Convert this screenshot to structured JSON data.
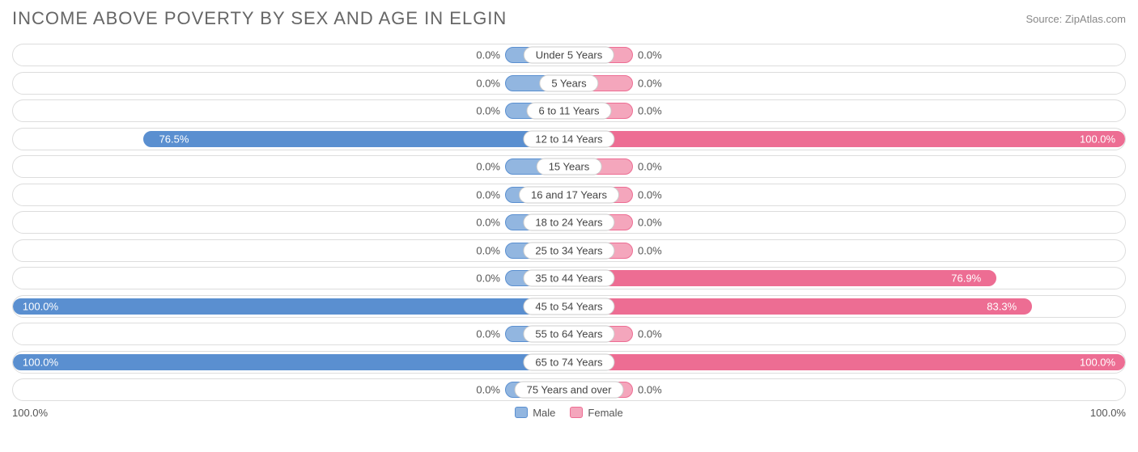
{
  "title": "INCOME ABOVE POVERTY BY SEX AND AGE IN ELGIN",
  "source": "Source: ZipAtlas.com",
  "axis": {
    "left_label": "100.0%",
    "right_label": "100.0%",
    "max": 100.0
  },
  "colors": {
    "male_fill": "#92b6e0",
    "male_border": "#5a8fd0",
    "male_solid": "#5a8fd0",
    "female_fill": "#f4a6bc",
    "female_border": "#ed6d93",
    "female_solid": "#ed6d93",
    "text_inside": "#ffffff",
    "text_outside": "#555555",
    "row_border": "#dddddd",
    "title_color": "#666666"
  },
  "min_bar_pct": 11.5,
  "legend": {
    "male": "Male",
    "female": "Female"
  },
  "rows": [
    {
      "age": "Under 5 Years",
      "male": 0.0,
      "female": 0.0
    },
    {
      "age": "5 Years",
      "male": 0.0,
      "female": 0.0
    },
    {
      "age": "6 to 11 Years",
      "male": 0.0,
      "female": 0.0
    },
    {
      "age": "12 to 14 Years",
      "male": 76.5,
      "female": 100.0
    },
    {
      "age": "15 Years",
      "male": 0.0,
      "female": 0.0
    },
    {
      "age": "16 and 17 Years",
      "male": 0.0,
      "female": 0.0
    },
    {
      "age": "18 to 24 Years",
      "male": 0.0,
      "female": 0.0
    },
    {
      "age": "25 to 34 Years",
      "male": 0.0,
      "female": 0.0
    },
    {
      "age": "35 to 44 Years",
      "male": 0.0,
      "female": 76.9
    },
    {
      "age": "45 to 54 Years",
      "male": 100.0,
      "female": 83.3
    },
    {
      "age": "55 to 64 Years",
      "male": 0.0,
      "female": 0.0
    },
    {
      "age": "65 to 74 Years",
      "male": 100.0,
      "female": 100.0
    },
    {
      "age": "75 Years and over",
      "male": 0.0,
      "female": 0.0
    }
  ]
}
